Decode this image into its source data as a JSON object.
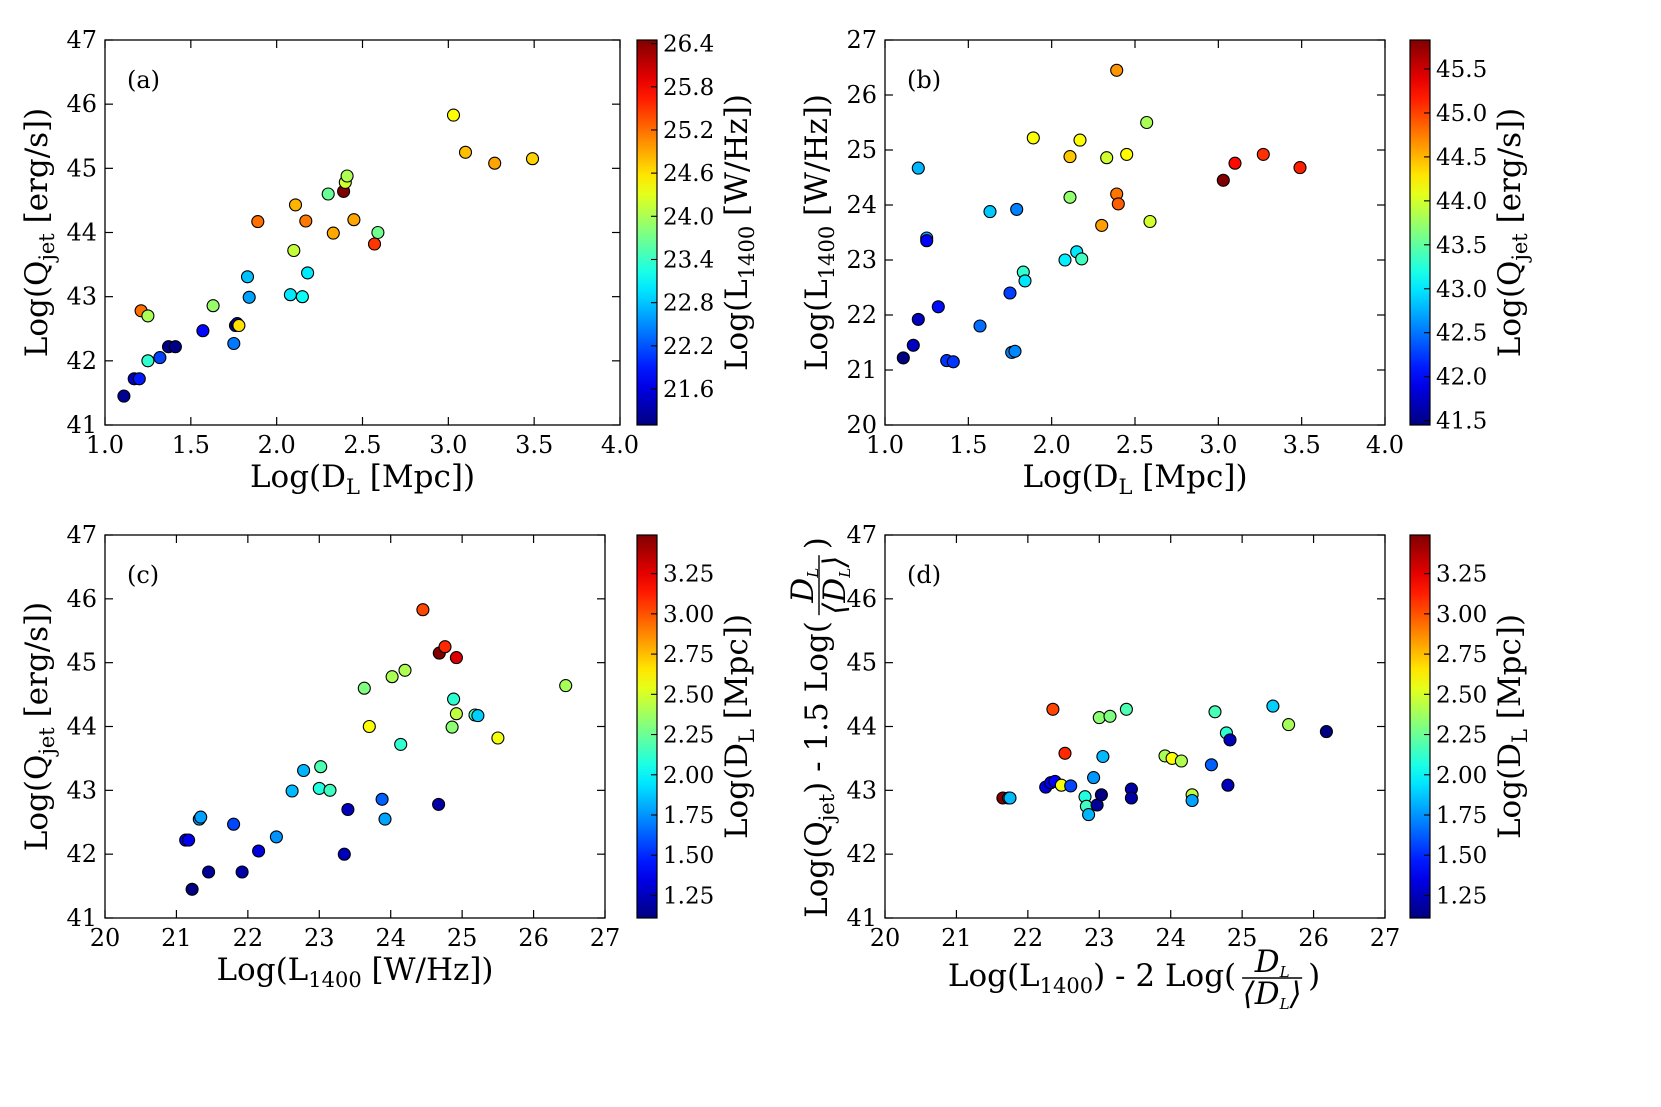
{
  "chart_data": [
    {
      "id": "a",
      "type": "scatter",
      "panel_label": "(a)",
      "xlim": [
        1.0,
        4.0
      ],
      "ylim": [
        41,
        47
      ],
      "xticks": [
        "1.0",
        "1.5",
        "2.0",
        "2.5",
        "3.0",
        "3.5",
        "4.0"
      ],
      "yticks": [
        "41",
        "42",
        "43",
        "44",
        "45",
        "46",
        "47"
      ],
      "xlabel": {
        "main": "Log(D",
        "sub": "L",
        "tail": " [Mpc])"
      },
      "ylabel": {
        "main": "Log(Q",
        "sub": "jet",
        "tail": " [erg/s])"
      },
      "colorbar": {
        "range": [
          21.1,
          26.45
        ],
        "ticks": [
          "21.6",
          "22.2",
          "22.8",
          "23.4",
          "24.0",
          "24.6",
          "25.2",
          "25.8",
          "26.4"
        ],
        "label": {
          "main": "Log(L",
          "sub": "1400",
          "tail": " [W/Hz])"
        }
      },
      "points": [
        {
          "x": 1.11,
          "y": 41.45,
          "c": 21.2
        },
        {
          "x": 1.17,
          "y": 41.72,
          "c": 21.45
        },
        {
          "x": 1.2,
          "y": 41.72,
          "c": 21.9
        },
        {
          "x": 1.21,
          "y": 42.78,
          "c": 25.2
        },
        {
          "x": 1.25,
          "y": 42.7,
          "c": 24.0
        },
        {
          "x": 1.25,
          "y": 42.0,
          "c": 23.35
        },
        {
          "x": 1.32,
          "y": 42.05,
          "c": 22.12
        },
        {
          "x": 1.37,
          "y": 42.22,
          "c": 21.15
        },
        {
          "x": 1.41,
          "y": 42.22,
          "c": 21.13
        },
        {
          "x": 1.57,
          "y": 42.47,
          "c": 21.8
        },
        {
          "x": 1.63,
          "y": 42.86,
          "c": 23.9
        },
        {
          "x": 1.75,
          "y": 42.27,
          "c": 22.4
        },
        {
          "x": 1.76,
          "y": 42.55,
          "c": 21.32
        },
        {
          "x": 1.77,
          "y": 42.58,
          "c": 21.33
        },
        {
          "x": 1.78,
          "y": 42.55,
          "c": 24.6
        },
        {
          "x": 1.83,
          "y": 43.31,
          "c": 22.78
        },
        {
          "x": 1.84,
          "y": 42.99,
          "c": 22.62
        },
        {
          "x": 1.89,
          "y": 44.17,
          "c": 25.2
        },
        {
          "x": 2.08,
          "y": 43.03,
          "c": 23.0
        },
        {
          "x": 2.1,
          "y": 43.72,
          "c": 24.14
        },
        {
          "x": 2.11,
          "y": 44.43,
          "c": 24.85
        },
        {
          "x": 2.15,
          "y": 43.0,
          "c": 23.15
        },
        {
          "x": 2.17,
          "y": 44.18,
          "c": 25.15
        },
        {
          "x": 2.18,
          "y": 43.37,
          "c": 23.0
        },
        {
          "x": 2.3,
          "y": 44.6,
          "c": 23.65
        },
        {
          "x": 2.33,
          "y": 43.99,
          "c": 24.9
        },
        {
          "x": 2.39,
          "y": 44.64,
          "c": 26.45
        },
        {
          "x": 2.4,
          "y": 44.78,
          "c": 24.2
        },
        {
          "x": 2.41,
          "y": 44.88,
          "c": 24.02
        },
        {
          "x": 2.45,
          "y": 44.2,
          "c": 24.92
        },
        {
          "x": 2.57,
          "y": 43.82,
          "c": 25.5
        },
        {
          "x": 2.59,
          "y": 44.0,
          "c": 23.7
        },
        {
          "x": 3.03,
          "y": 45.83,
          "c": 24.45
        },
        {
          "x": 3.1,
          "y": 45.25,
          "c": 24.78
        },
        {
          "x": 3.27,
          "y": 45.08,
          "c": 24.92
        },
        {
          "x": 3.49,
          "y": 45.15,
          "c": 24.68
        }
      ]
    },
    {
      "id": "b",
      "type": "scatter",
      "panel_label": "(b)",
      "xlim": [
        1.0,
        4.0
      ],
      "ylim": [
        20,
        27
      ],
      "xticks": [
        "1.0",
        "1.5",
        "2.0",
        "2.5",
        "3.0",
        "3.5",
        "4.0"
      ],
      "yticks": [
        "20",
        "21",
        "22",
        "23",
        "24",
        "25",
        "26",
        "27"
      ],
      "xlabel": {
        "main": "Log(D",
        "sub": "L",
        "tail": " [Mpc])"
      },
      "ylabel": {
        "main": "Log(L",
        "sub": "1400",
        "tail": " [W/Hz])"
      },
      "colorbar": {
        "range": [
          41.45,
          45.83
        ],
        "ticks": [
          "41.5",
          "42.0",
          "42.5",
          "43.0",
          "43.5",
          "44.0",
          "44.5",
          "45.0",
          "45.5"
        ],
        "label": {
          "main": "Log(Q",
          "sub": "jet",
          "tail": " [erg/s])"
        }
      },
      "points": [
        {
          "x": 1.11,
          "y": 21.22,
          "c": 41.45
        },
        {
          "x": 1.17,
          "y": 21.45,
          "c": 41.72
        },
        {
          "x": 1.2,
          "y": 21.92,
          "c": 41.72
        },
        {
          "x": 1.2,
          "y": 24.67,
          "c": 42.78
        },
        {
          "x": 1.25,
          "y": 23.4,
          "c": 42.7
        },
        {
          "x": 1.25,
          "y": 23.35,
          "c": 42.0
        },
        {
          "x": 1.32,
          "y": 22.15,
          "c": 42.05
        },
        {
          "x": 1.37,
          "y": 21.17,
          "c": 42.22
        },
        {
          "x": 1.41,
          "y": 21.15,
          "c": 42.22
        },
        {
          "x": 1.57,
          "y": 21.8,
          "c": 42.47
        },
        {
          "x": 1.63,
          "y": 23.88,
          "c": 42.86
        },
        {
          "x": 1.75,
          "y": 22.4,
          "c": 42.27
        },
        {
          "x": 1.76,
          "y": 21.32,
          "c": 42.55
        },
        {
          "x": 1.78,
          "y": 21.34,
          "c": 42.58
        },
        {
          "x": 1.79,
          "y": 23.92,
          "c": 42.55
        },
        {
          "x": 1.83,
          "y": 22.78,
          "c": 43.31
        },
        {
          "x": 1.84,
          "y": 22.62,
          "c": 42.99
        },
        {
          "x": 1.89,
          "y": 25.22,
          "c": 44.17
        },
        {
          "x": 2.08,
          "y": 23.0,
          "c": 43.03
        },
        {
          "x": 2.11,
          "y": 24.14,
          "c": 43.72
        },
        {
          "x": 2.11,
          "y": 24.88,
          "c": 44.43
        },
        {
          "x": 2.15,
          "y": 23.15,
          "c": 43.0
        },
        {
          "x": 2.17,
          "y": 25.18,
          "c": 44.18
        },
        {
          "x": 2.18,
          "y": 23.02,
          "c": 43.37
        },
        {
          "x": 2.3,
          "y": 23.63,
          "c": 44.6
        },
        {
          "x": 2.33,
          "y": 24.86,
          "c": 43.99
        },
        {
          "x": 2.39,
          "y": 26.45,
          "c": 44.64
        },
        {
          "x": 2.39,
          "y": 24.2,
          "c": 44.78
        },
        {
          "x": 2.4,
          "y": 24.02,
          "c": 44.88
        },
        {
          "x": 2.45,
          "y": 24.92,
          "c": 44.2
        },
        {
          "x": 2.57,
          "y": 25.5,
          "c": 43.82
        },
        {
          "x": 2.59,
          "y": 23.7,
          "c": 44.0
        },
        {
          "x": 3.03,
          "y": 24.45,
          "c": 45.83
        },
        {
          "x": 3.1,
          "y": 24.76,
          "c": 45.25
        },
        {
          "x": 3.27,
          "y": 24.92,
          "c": 45.08
        },
        {
          "x": 3.49,
          "y": 24.68,
          "c": 45.15
        }
      ]
    },
    {
      "id": "c",
      "type": "scatter",
      "panel_label": "(c)",
      "xlim": [
        20,
        27
      ],
      "ylim": [
        41,
        47
      ],
      "xticks": [
        "20",
        "21",
        "22",
        "23",
        "24",
        "25",
        "26",
        "27"
      ],
      "yticks": [
        "41",
        "42",
        "43",
        "44",
        "45",
        "46",
        "47"
      ],
      "xlabel": {
        "main": "Log(L",
        "sub": "1400",
        "tail": " [W/Hz])"
      },
      "ylabel": {
        "main": "Log(Q",
        "sub": "jet",
        "tail": " [erg/s])"
      },
      "colorbar": {
        "range": [
          1.11,
          3.49
        ],
        "ticks": [
          "1.25",
          "1.50",
          "1.75",
          "2.00",
          "2.25",
          "2.50",
          "2.75",
          "3.00",
          "3.25"
        ],
        "label": {
          "main": "Log(D",
          "sub": "L",
          "tail": " [Mpc])"
        }
      },
      "points": [
        {
          "x": 21.13,
          "y": 42.22,
          "c": 1.41
        },
        {
          "x": 21.17,
          "y": 42.22,
          "c": 1.37
        },
        {
          "x": 21.22,
          "y": 41.45,
          "c": 1.11
        },
        {
          "x": 21.32,
          "y": 42.55,
          "c": 1.76
        },
        {
          "x": 21.34,
          "y": 42.58,
          "c": 1.78
        },
        {
          "x": 21.45,
          "y": 41.72,
          "c": 1.17
        },
        {
          "x": 21.8,
          "y": 42.47,
          "c": 1.57
        },
        {
          "x": 21.92,
          "y": 41.72,
          "c": 1.2
        },
        {
          "x": 22.15,
          "y": 42.05,
          "c": 1.32
        },
        {
          "x": 22.4,
          "y": 42.27,
          "c": 1.75
        },
        {
          "x": 22.62,
          "y": 42.99,
          "c": 1.84
        },
        {
          "x": 22.78,
          "y": 43.31,
          "c": 1.83
        },
        {
          "x": 23.0,
          "y": 43.03,
          "c": 2.08
        },
        {
          "x": 23.02,
          "y": 43.37,
          "c": 2.18
        },
        {
          "x": 23.15,
          "y": 43.0,
          "c": 2.15
        },
        {
          "x": 23.35,
          "y": 42.0,
          "c": 1.25
        },
        {
          "x": 23.4,
          "y": 42.7,
          "c": 1.25
        },
        {
          "x": 23.63,
          "y": 44.6,
          "c": 2.3
        },
        {
          "x": 23.7,
          "y": 44.0,
          "c": 2.59
        },
        {
          "x": 23.88,
          "y": 42.86,
          "c": 1.63
        },
        {
          "x": 23.92,
          "y": 42.55,
          "c": 1.79
        },
        {
          "x": 24.02,
          "y": 44.78,
          "c": 2.4
        },
        {
          "x": 24.14,
          "y": 43.72,
          "c": 2.11
        },
        {
          "x": 24.2,
          "y": 44.88,
          "c": 2.41
        },
        {
          "x": 24.45,
          "y": 45.83,
          "c": 3.03
        },
        {
          "x": 24.67,
          "y": 42.78,
          "c": 1.2
        },
        {
          "x": 24.68,
          "y": 45.15,
          "c": 3.49
        },
        {
          "x": 24.76,
          "y": 45.25,
          "c": 3.1
        },
        {
          "x": 24.86,
          "y": 43.99,
          "c": 2.33
        },
        {
          "x": 24.88,
          "y": 44.43,
          "c": 2.11
        },
        {
          "x": 24.92,
          "y": 44.2,
          "c": 2.45
        },
        {
          "x": 24.92,
          "y": 45.08,
          "c": 3.27
        },
        {
          "x": 25.18,
          "y": 44.18,
          "c": 2.17
        },
        {
          "x": 25.22,
          "y": 44.17,
          "c": 1.89
        },
        {
          "x": 25.5,
          "y": 43.82,
          "c": 2.57
        },
        {
          "x": 26.45,
          "y": 44.64,
          "c": 2.39
        }
      ]
    },
    {
      "id": "d",
      "type": "scatter",
      "panel_label": "(d)",
      "xlim": [
        20,
        27
      ],
      "ylim": [
        41,
        47
      ],
      "xticks": [
        "20",
        "21",
        "22",
        "23",
        "24",
        "25",
        "26",
        "27"
      ],
      "yticks": [
        "41",
        "42",
        "43",
        "44",
        "45",
        "46",
        "47"
      ],
      "xlabel": {
        "main": "Log(L",
        "sub": "1400",
        "tail": ") - 2 Log(",
        "frac_num": "D",
        "frac_num_sub": "L",
        "frac_den": "⟨D",
        "frac_den_sub": "L",
        "frac_den_tail": "⟩",
        "close": ")"
      },
      "ylabel": {
        "main": "Log(Q",
        "sub": "jet",
        "tail": ") - 1.5 Log(",
        "frac_num": "D",
        "frac_num_sub": "L",
        "frac_den": "⟨D",
        "frac_den_sub": "L",
        "frac_den_tail": "⟩",
        "close": ")"
      },
      "colorbar": {
        "range": [
          1.11,
          3.49
        ],
        "ticks": [
          "1.25",
          "1.50",
          "1.75",
          "2.00",
          "2.25",
          "2.50",
          "2.75",
          "3.00",
          "3.25"
        ],
        "label": {
          "main": "Log(D",
          "sub": "L",
          "tail": " [Mpc])"
        }
      },
      "points": [
        {
          "x": 21.65,
          "y": 42.88,
          "c": 3.49
        },
        {
          "x": 21.73,
          "y": 42.88,
          "c": 1.75
        },
        {
          "x": 21.75,
          "y": 42.88,
          "c": 1.84
        },
        {
          "x": 22.25,
          "y": 43.05,
          "c": 1.32
        },
        {
          "x": 22.32,
          "y": 43.12,
          "c": 1.37
        },
        {
          "x": 22.35,
          "y": 44.27,
          "c": 3.03
        },
        {
          "x": 22.38,
          "y": 43.14,
          "c": 1.41
        },
        {
          "x": 22.47,
          "y": 43.08,
          "c": 2.57
        },
        {
          "x": 22.52,
          "y": 43.58,
          "c": 3.1
        },
        {
          "x": 22.6,
          "y": 43.07,
          "c": 1.57
        },
        {
          "x": 22.8,
          "y": 42.9,
          "c": 2.08
        },
        {
          "x": 22.82,
          "y": 42.75,
          "c": 2.15
        },
        {
          "x": 22.85,
          "y": 42.62,
          "c": 1.83
        },
        {
          "x": 22.92,
          "y": 43.2,
          "c": 1.76
        },
        {
          "x": 22.97,
          "y": 42.77,
          "c": 1.17
        },
        {
          "x": 23.0,
          "y": 44.14,
          "c": 2.33
        },
        {
          "x": 23.03,
          "y": 42.93,
          "c": 1.11
        },
        {
          "x": 23.05,
          "y": 43.53,
          "c": 1.84
        },
        {
          "x": 23.15,
          "y": 44.16,
          "c": 2.3
        },
        {
          "x": 23.38,
          "y": 44.27,
          "c": 2.18
        },
        {
          "x": 23.45,
          "y": 43.02,
          "c": 1.2
        },
        {
          "x": 23.45,
          "y": 42.88,
          "c": 1.2
        },
        {
          "x": 23.92,
          "y": 43.54,
          "c": 2.4
        },
        {
          "x": 24.02,
          "y": 43.5,
          "c": 2.59
        },
        {
          "x": 24.15,
          "y": 43.46,
          "c": 2.41
        },
        {
          "x": 24.3,
          "y": 42.93,
          "c": 2.45
        },
        {
          "x": 24.3,
          "y": 42.84,
          "c": 1.79
        },
        {
          "x": 24.57,
          "y": 43.4,
          "c": 1.63
        },
        {
          "x": 24.62,
          "y": 44.23,
          "c": 2.17
        },
        {
          "x": 24.78,
          "y": 43.9,
          "c": 2.11
        },
        {
          "x": 24.8,
          "y": 43.08,
          "c": 1.25
        },
        {
          "x": 24.83,
          "y": 43.79,
          "c": 1.25
        },
        {
          "x": 25.43,
          "y": 44.32,
          "c": 1.89
        },
        {
          "x": 25.65,
          "y": 44.03,
          "c": 2.39
        },
        {
          "x": 26.18,
          "y": 43.92,
          "c": 1.11
        }
      ]
    }
  ]
}
